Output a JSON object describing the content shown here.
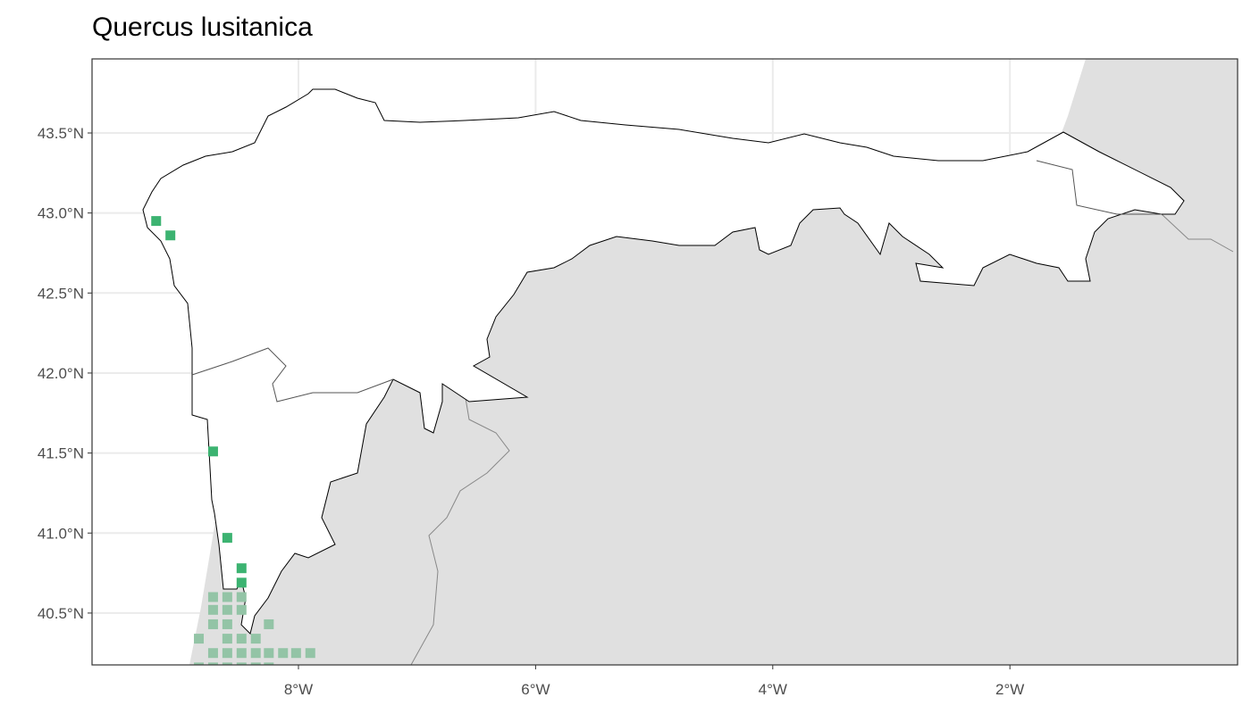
{
  "title": "Quercus lusitanica",
  "chart_data": {
    "type": "scatter",
    "title": "Quercus lusitanica",
    "xlim": [
      -9.75,
      -0.4
    ],
    "ylim": [
      40.17,
      43.95
    ],
    "grid": true,
    "x_ticks": [
      {
        "value": -8,
        "label": "8°W"
      },
      {
        "value": -6,
        "label": "6°W"
      },
      {
        "value": -4,
        "label": "4°W"
      },
      {
        "value": -2,
        "label": "2°W"
      }
    ],
    "y_ticks": [
      {
        "value": 43.5,
        "label": "43.5°N"
      },
      {
        "value": 43.0,
        "label": "43.0°N"
      },
      {
        "value": 42.5,
        "label": "42.5°N"
      },
      {
        "value": 42.0,
        "label": "42.0°N"
      },
      {
        "value": 41.5,
        "label": "41.5°N"
      },
      {
        "value": 41.0,
        "label": "41.0°N"
      },
      {
        "value": 40.5,
        "label": "40.5°N"
      }
    ],
    "colors": {
      "inside": "#3cb371",
      "outside": "#93c4a6",
      "outside_land": "#e0e0e0",
      "study_area": "#ffffff"
    },
    "points_inside": [
      [
        -9.2,
        42.95
      ],
      [
        -9.08,
        42.86
      ],
      [
        -8.72,
        41.51
      ],
      [
        -8.6,
        40.97
      ],
      [
        -8.48,
        40.78
      ],
      [
        -8.48,
        40.69
      ]
    ],
    "points_outside": [
      [
        -8.72,
        40.6
      ],
      [
        -8.6,
        40.6
      ],
      [
        -8.48,
        40.6
      ],
      [
        -8.72,
        40.52
      ],
      [
        -8.6,
        40.52
      ],
      [
        -8.48,
        40.52
      ],
      [
        -8.72,
        40.43
      ],
      [
        -8.6,
        40.43
      ],
      [
        -8.25,
        40.43
      ],
      [
        -8.84,
        40.34
      ],
      [
        -8.6,
        40.34
      ],
      [
        -8.48,
        40.34
      ],
      [
        -8.36,
        40.34
      ],
      [
        -8.72,
        40.25
      ],
      [
        -8.6,
        40.25
      ],
      [
        -8.48,
        40.25
      ],
      [
        -8.36,
        40.25
      ],
      [
        -8.25,
        40.25
      ],
      [
        -8.13,
        40.25
      ],
      [
        -8.02,
        40.25
      ],
      [
        -7.9,
        40.25
      ],
      [
        -8.84,
        40.16
      ],
      [
        -8.72,
        40.16
      ],
      [
        -8.6,
        40.16
      ],
      [
        -8.48,
        40.16
      ],
      [
        -8.36,
        40.16
      ],
      [
        -8.25,
        40.16
      ]
    ]
  }
}
